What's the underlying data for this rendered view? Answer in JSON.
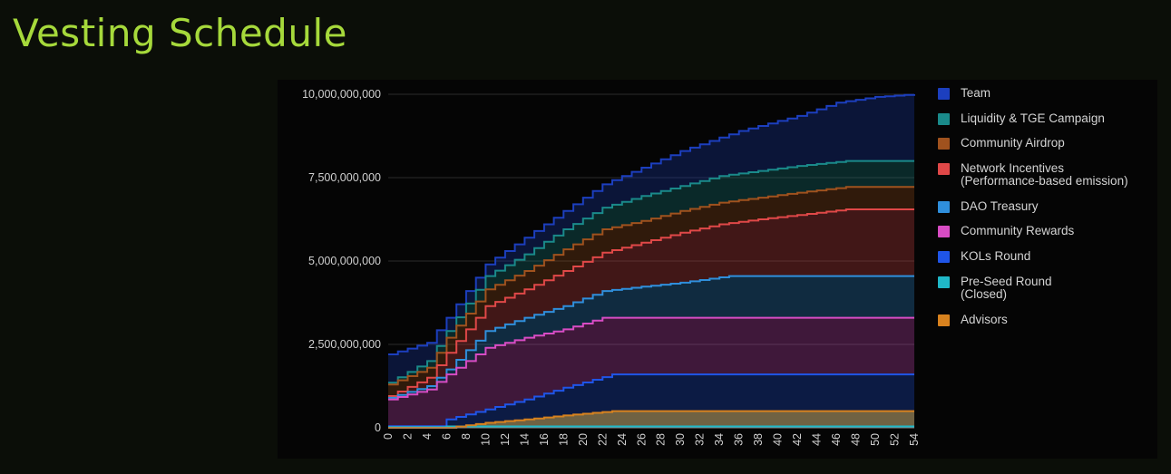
{
  "page": {
    "title": "Vesting Schedule"
  },
  "chart_data": {
    "type": "area",
    "stacked": true,
    "x_ticks": [
      0,
      2,
      4,
      6,
      8,
      10,
      12,
      14,
      16,
      18,
      20,
      22,
      24,
      26,
      28,
      30,
      32,
      34,
      36,
      38,
      40,
      42,
      44,
      46,
      48,
      50,
      52,
      54
    ],
    "y_ticks": [
      "0",
      "2,500,000,000",
      "5,000,000,000",
      "7,500,000,000",
      "10,000,000,000"
    ],
    "ylim": [
      0,
      10000000000
    ],
    "xlim": [
      0,
      54
    ],
    "grid": true,
    "legend_position": "right",
    "series": [
      {
        "name": "Team",
        "color": "#1c3fbf",
        "points": [
          [
            0,
            2200000000
          ],
          [
            4,
            2550000000
          ],
          [
            6,
            3300000000
          ],
          [
            10,
            4900000000
          ],
          [
            14,
            5700000000
          ],
          [
            18,
            6500000000
          ],
          [
            22,
            7300000000
          ],
          [
            26,
            7800000000
          ],
          [
            30,
            8300000000
          ],
          [
            36,
            8900000000
          ],
          [
            42,
            9350000000
          ],
          [
            46,
            9750000000
          ],
          [
            50,
            9920000000
          ],
          [
            54,
            10000000000
          ]
        ]
      },
      {
        "name": "Liquidity & TGE Campaign",
        "color": "#1a8a8a",
        "points": [
          [
            0,
            1350000000
          ],
          [
            4,
            2000000000
          ],
          [
            6,
            2900000000
          ],
          [
            10,
            4550000000
          ],
          [
            14,
            5200000000
          ],
          [
            18,
            5950000000
          ],
          [
            22,
            6600000000
          ],
          [
            26,
            6950000000
          ],
          [
            30,
            7250000000
          ],
          [
            34,
            7550000000
          ],
          [
            38,
            7700000000
          ],
          [
            42,
            7850000000
          ],
          [
            47,
            8000000000
          ],
          [
            54,
            8000000000
          ]
        ]
      },
      {
        "name": "Community Airdrop",
        "color": "#a0521e",
        "points": [
          [
            0,
            1300000000
          ],
          [
            4,
            1800000000
          ],
          [
            6,
            2700000000
          ],
          [
            10,
            4150000000
          ],
          [
            14,
            4700000000
          ],
          [
            18,
            5350000000
          ],
          [
            22,
            5950000000
          ],
          [
            26,
            6200000000
          ],
          [
            30,
            6500000000
          ],
          [
            34,
            6750000000
          ],
          [
            38,
            6900000000
          ],
          [
            42,
            7050000000
          ],
          [
            47,
            7220000000
          ],
          [
            54,
            7220000000
          ]
        ]
      },
      {
        "name": "Network Incentives (Performance-based emission)",
        "color": "#e04848",
        "points": [
          [
            0,
            950000000
          ],
          [
            4,
            1500000000
          ],
          [
            6,
            2250000000
          ],
          [
            10,
            3650000000
          ],
          [
            14,
            4150000000
          ],
          [
            18,
            4700000000
          ],
          [
            22,
            5250000000
          ],
          [
            26,
            5550000000
          ],
          [
            30,
            5850000000
          ],
          [
            34,
            6100000000
          ],
          [
            38,
            6250000000
          ],
          [
            42,
            6380000000
          ],
          [
            47,
            6550000000
          ],
          [
            54,
            6550000000
          ]
        ]
      },
      {
        "name": "DAO Treasury",
        "color": "#2f8fdc",
        "points": [
          [
            0,
            900000000
          ],
          [
            4,
            1250000000
          ],
          [
            6,
            1750000000
          ],
          [
            10,
            2900000000
          ],
          [
            14,
            3300000000
          ],
          [
            18,
            3650000000
          ],
          [
            22,
            4100000000
          ],
          [
            26,
            4230000000
          ],
          [
            30,
            4350000000
          ],
          [
            35,
            4550000000
          ],
          [
            54,
            4550000000
          ]
        ]
      },
      {
        "name": "Community Rewards",
        "color": "#d84cc4",
        "points": [
          [
            0,
            850000000
          ],
          [
            4,
            1150000000
          ],
          [
            6,
            1600000000
          ],
          [
            10,
            2400000000
          ],
          [
            14,
            2700000000
          ],
          [
            18,
            2950000000
          ],
          [
            22,
            3300000000
          ],
          [
            54,
            3300000000
          ]
        ]
      },
      {
        "name": "KOLs Round",
        "color": "#1f55e8",
        "points": [
          [
            0,
            50000000
          ],
          [
            5,
            50000000
          ],
          [
            6,
            250000000
          ],
          [
            10,
            550000000
          ],
          [
            14,
            850000000
          ],
          [
            18,
            1200000000
          ],
          [
            23,
            1600000000
          ],
          [
            54,
            1600000000
          ]
        ]
      },
      {
        "name": "Pre-Seed Round (Closed)",
        "color": "#1fb8c8",
        "points": [
          [
            0,
            20000000
          ],
          [
            5,
            20000000
          ],
          [
            6,
            40000000
          ],
          [
            54,
            40000000
          ]
        ]
      },
      {
        "name": "Advisors",
        "color": "#d8821e",
        "points": [
          [
            0,
            0
          ],
          [
            6,
            0
          ],
          [
            10,
            150000000
          ],
          [
            14,
            250000000
          ],
          [
            18,
            370000000
          ],
          [
            23,
            500000000
          ],
          [
            54,
            500000000
          ]
        ]
      }
    ]
  }
}
